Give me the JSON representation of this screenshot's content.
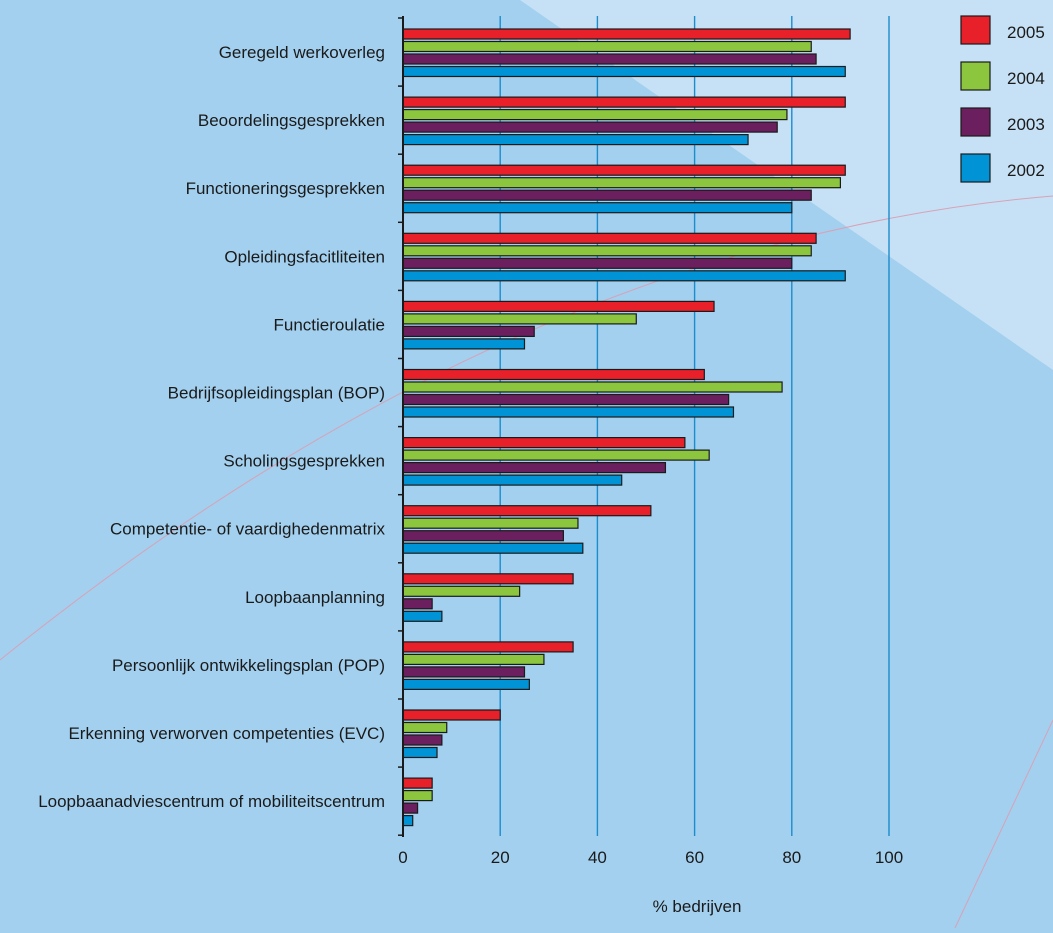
{
  "chart_data": {
    "type": "bar",
    "orientation": "horizontal",
    "categories": [
      "Geregeld werkoverleg",
      "Beoordelingsgesprekken",
      "Functioneringsgesprekken",
      "Opleidingsfacitliteiten",
      "Functieroulatie",
      "Bedrijfsopleidingsplan (BOP)",
      "Scholingsgesprekken",
      "Competentie- of vaardighedenmatrix",
      "Loopbaanplanning",
      "Persoonlijk ontwikkelingsplan (POP)",
      "Erkenning verworven competenties (EVC)",
      "Loopbaanadviescentrum of mobiliteitscentrum"
    ],
    "series": [
      {
        "name": "2005",
        "color": "#e8202a",
        "values": [
          92,
          91,
          91,
          85,
          64,
          62,
          58,
          51,
          35,
          35,
          20,
          6
        ]
      },
      {
        "name": "2004",
        "color": "#8cc63f",
        "values": [
          84,
          79,
          90,
          84,
          48,
          78,
          63,
          36,
          24,
          29,
          9,
          6
        ]
      },
      {
        "name": "2003",
        "color": "#6b1f5e",
        "values": [
          85,
          77,
          84,
          80,
          27,
          67,
          54,
          33,
          6,
          25,
          8,
          3
        ]
      },
      {
        "name": "2002",
        "color": "#0093d5",
        "values": [
          91,
          71,
          80,
          91,
          25,
          68,
          45,
          37,
          8,
          26,
          7,
          2
        ]
      }
    ],
    "xticks": [
      "0",
      "20",
      "40",
      "60",
      "80",
      "100"
    ],
    "xlim": [
      0,
      100
    ],
    "xlabel": "% bedrijven",
    "title": "",
    "grid": true,
    "legend_position": "top-right"
  }
}
